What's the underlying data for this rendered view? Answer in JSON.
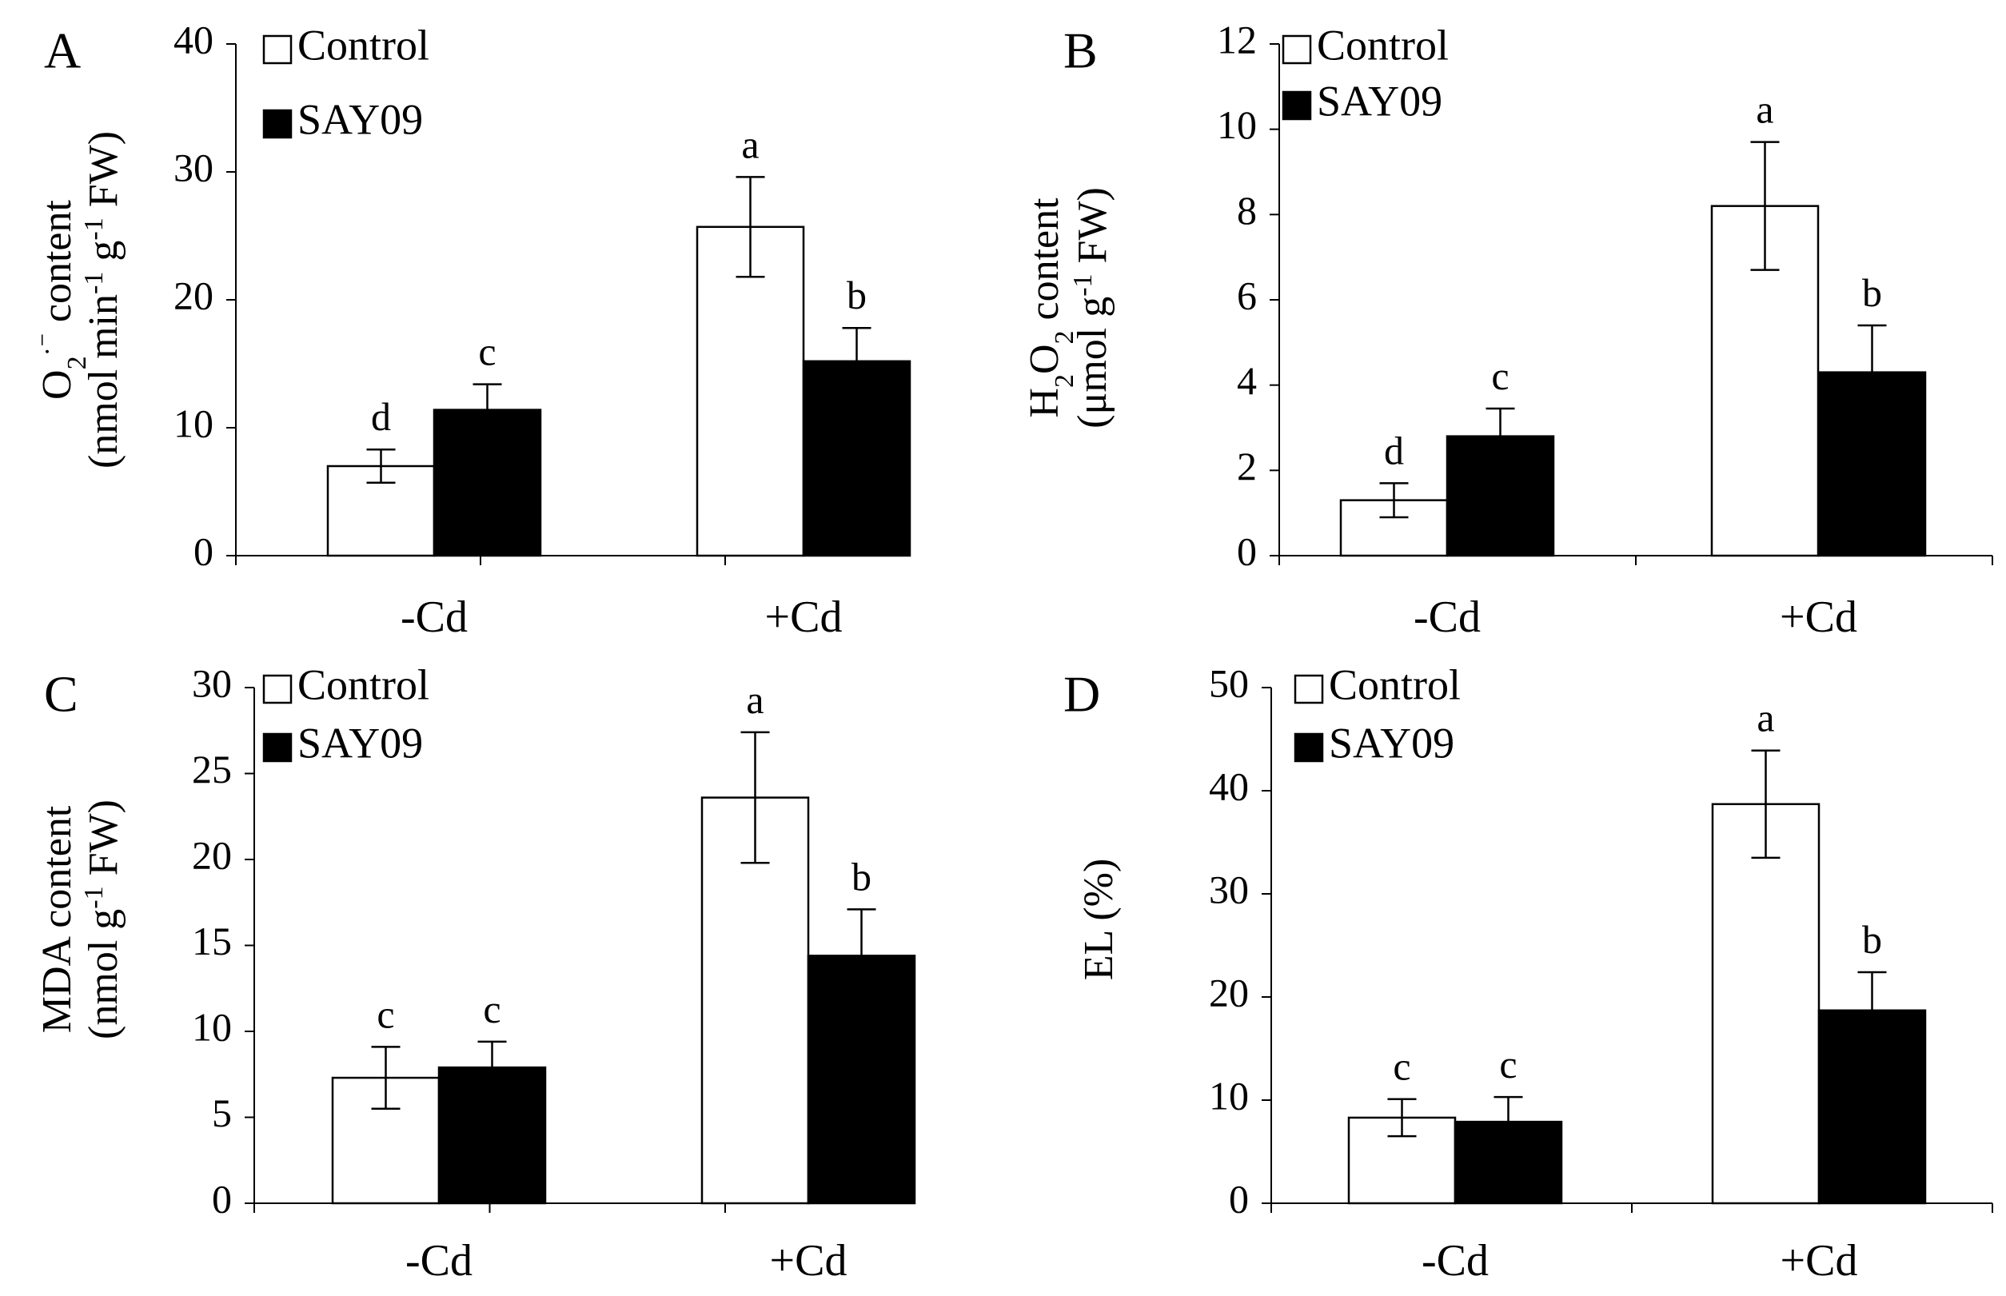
{
  "chart_data": [
    {
      "type": "bar",
      "panel": "A",
      "categories": [
        "-Cd",
        "+Cd"
      ],
      "series": [
        {
          "name": "Control",
          "color": "#ffffff",
          "values": [
            7.0,
            25.7
          ],
          "errors": [
            1.3,
            3.9
          ],
          "letters": [
            "d",
            "a"
          ]
        },
        {
          "name": "SAY09",
          "color": "#000000",
          "values": [
            11.4,
            15.2
          ],
          "errors": [
            2.0,
            2.6
          ],
          "letters": [
            "c",
            "b"
          ]
        }
      ],
      "ylim": [
        0,
        40
      ],
      "yticks": [
        0,
        10,
        20,
        30,
        40
      ],
      "ylabel": {
        "line1": [
          {
            "text": "O"
          },
          {
            "text": "2",
            "sub": true
          },
          {
            "text": "·⁻",
            "sup": true
          },
          {
            "text": " content"
          }
        ],
        "line2": [
          {
            "text": "(nmol min"
          },
          {
            "text": "-1",
            "sup": true
          },
          {
            "text": " g"
          },
          {
            "text": "-1",
            "sup": true
          },
          {
            "text": " FW)"
          }
        ]
      },
      "legend": [
        "Control",
        "SAY09"
      ]
    },
    {
      "type": "bar",
      "panel": "B",
      "categories": [
        "-Cd",
        "+Cd"
      ],
      "series": [
        {
          "name": "Control",
          "color": "#ffffff",
          "values": [
            1.3,
            8.2
          ],
          "errors": [
            0.4,
            1.5
          ],
          "letters": [
            "d",
            "a"
          ]
        },
        {
          "name": "SAY09",
          "color": "#000000",
          "values": [
            2.8,
            4.3
          ],
          "errors": [
            0.65,
            1.1
          ],
          "letters": [
            "c",
            "b"
          ]
        }
      ],
      "ylim": [
        0,
        12
      ],
      "yticks": [
        0,
        2,
        4,
        6,
        8,
        10,
        12
      ],
      "ylabel": {
        "line1": [
          {
            "text": "H"
          },
          {
            "text": "2",
            "sub": true
          },
          {
            "text": "O"
          },
          {
            "text": "2",
            "sub": true
          },
          {
            "text": " content"
          }
        ],
        "line2": [
          {
            "text": "(μmol g"
          },
          {
            "text": "-1",
            "sup": true
          },
          {
            "text": " FW)"
          }
        ]
      },
      "legend": [
        "Control",
        "SAY09"
      ]
    },
    {
      "type": "bar",
      "panel": "C",
      "categories": [
        "-Cd",
        "+Cd"
      ],
      "series": [
        {
          "name": "Control",
          "color": "#ffffff",
          "values": [
            7.3,
            23.6
          ],
          "errors": [
            1.8,
            3.8
          ],
          "letters": [
            "c",
            "a"
          ]
        },
        {
          "name": "SAY09",
          "color": "#000000",
          "values": [
            7.9,
            14.4
          ],
          "errors": [
            1.5,
            2.7
          ],
          "letters": [
            "c",
            "b"
          ]
        }
      ],
      "ylim": [
        0,
        30
      ],
      "yticks": [
        0,
        5,
        10,
        15,
        20,
        25,
        30
      ],
      "ylabel": {
        "line1": [
          {
            "text": "MDA content"
          }
        ],
        "line2": [
          {
            "text": "(nmol g"
          },
          {
            "text": "-1",
            "sup": true
          },
          {
            "text": " FW)"
          }
        ]
      },
      "legend": [
        "Control",
        "SAY09"
      ]
    },
    {
      "type": "bar",
      "panel": "D",
      "categories": [
        "-Cd",
        "+Cd"
      ],
      "series": [
        {
          "name": "Control",
          "color": "#ffffff",
          "values": [
            8.3,
            38.7
          ],
          "errors": [
            1.8,
            5.2
          ],
          "letters": [
            "c",
            "a"
          ]
        },
        {
          "name": "SAY09",
          "color": "#000000",
          "values": [
            7.9,
            18.7
          ],
          "errors": [
            2.4,
            3.7
          ],
          "letters": [
            "c",
            "b"
          ]
        }
      ],
      "ylim": [
        0,
        50
      ],
      "yticks": [
        0,
        10,
        20,
        30,
        40,
        50
      ],
      "ylabel": {
        "line1": [
          {
            "text": "EL (%)"
          }
        ]
      },
      "legend": [
        "Control",
        "SAY09"
      ]
    }
  ]
}
